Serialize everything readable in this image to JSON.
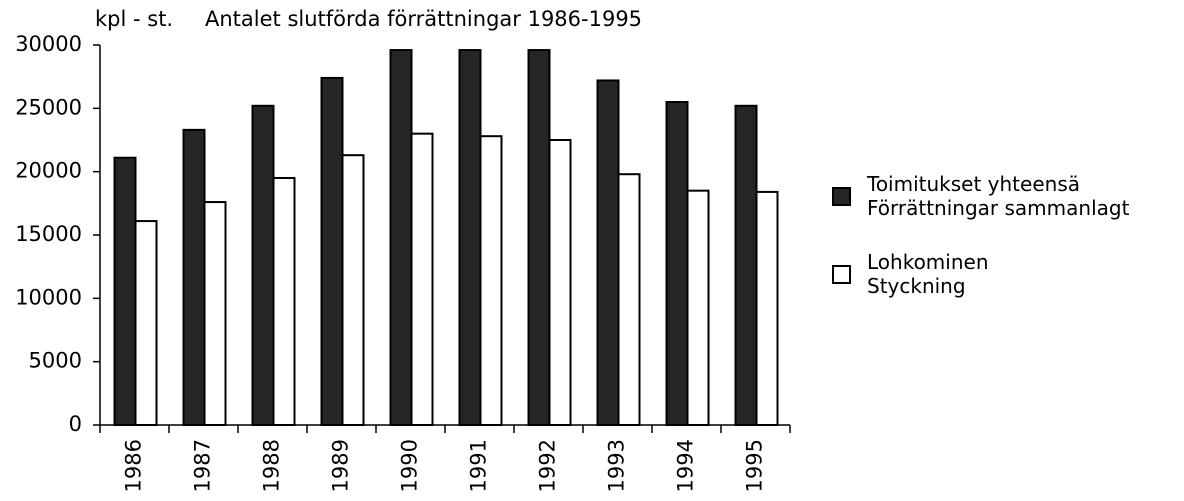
{
  "chart_data": {
    "type": "bar",
    "title": "Antalet slutförda förrättningar  1986-1995",
    "y_label": "kpl - st.",
    "categories": [
      "1986",
      "1987",
      "1988",
      "1989",
      "1990",
      "1991",
      "1992",
      "1993",
      "1994",
      "1995"
    ],
    "series": [
      {
        "name": "Toimitukset yhteensä\nFörrättningar sammanlagt",
        "color": "#262626",
        "values": [
          21100,
          23300,
          25200,
          27400,
          29600,
          29600,
          29600,
          27200,
          25500,
          25200
        ]
      },
      {
        "name": "Lohkominen\nStyckning",
        "color": "#ffffff",
        "values": [
          16100,
          17600,
          19500,
          21300,
          23000,
          22800,
          22500,
          19800,
          18500,
          18400
        ]
      }
    ],
    "ylim": [
      0,
      30000
    ],
    "yticks": [
      0,
      5000,
      10000,
      15000,
      20000,
      25000,
      30000
    ]
  }
}
